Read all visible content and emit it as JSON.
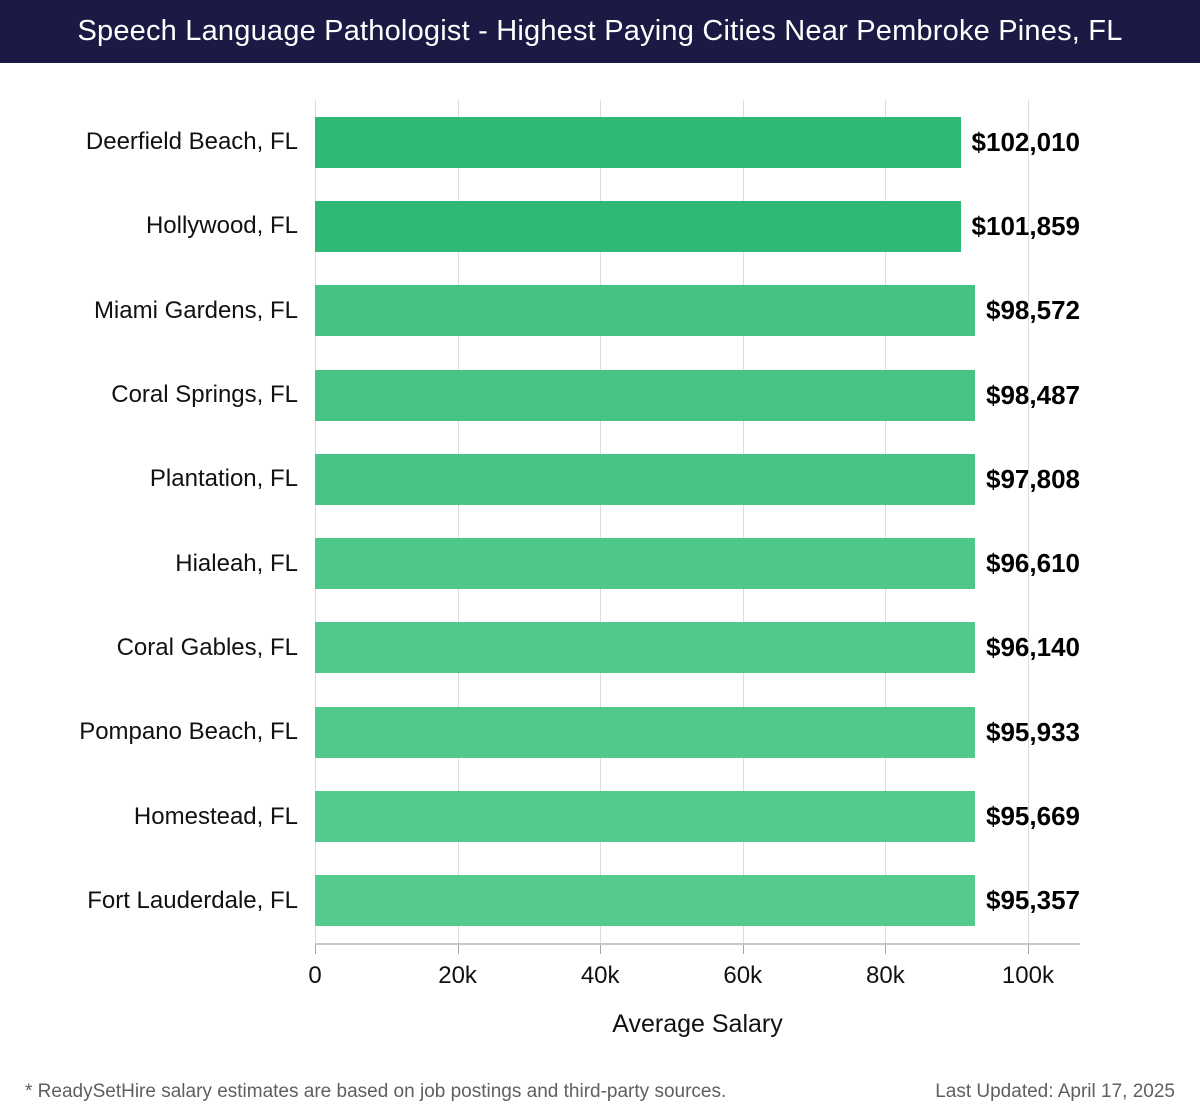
{
  "header": {
    "title": "Speech Language Pathologist - Highest Paying Cities Near Pembroke Pines, FL",
    "bg_color": "#1a1a44",
    "text_color": "#ffffff"
  },
  "chart_data": {
    "type": "bar",
    "orientation": "horizontal",
    "title": "Speech Language Pathologist - Highest Paying Cities Near Pembroke Pines, FL",
    "categories": [
      "Deerfield Beach, FL",
      "Hollywood, FL",
      "Miami Gardens, FL",
      "Coral Springs, FL",
      "Plantation, FL",
      "Hialeah, FL",
      "Coral Gables, FL",
      "Pompano Beach, FL",
      "Homestead, FL",
      "Fort Lauderdale, FL"
    ],
    "values": [
      102010,
      101859,
      98572,
      98487,
      97808,
      96610,
      96140,
      95933,
      95669,
      95357
    ],
    "value_labels": [
      "$102,010",
      "$101,859",
      "$98,572",
      "$98,487",
      "$97,808",
      "$96,610",
      "$96,140",
      "$95,933",
      "$95,669",
      "$95,357"
    ],
    "bar_colors": [
      "#2fb876",
      "#30b877",
      "#45c384",
      "#46c385",
      "#48c486",
      "#4ec78a",
      "#50c88b",
      "#51c88c",
      "#52c98d",
      "#54ca8e"
    ],
    "xlabel": "Average Salary",
    "ylabel": "",
    "x_ticks": [
      {
        "label": "0",
        "value": 0
      },
      {
        "label": "20k",
        "value": 20000
      },
      {
        "label": "40k",
        "value": 40000
      },
      {
        "label": "60k",
        "value": 60000
      },
      {
        "label": "80k",
        "value": 80000
      },
      {
        "label": "100k",
        "value": 100000
      }
    ],
    "xlim": [
      0,
      107300
    ],
    "grid": "vertical",
    "legend": "none"
  },
  "footer": {
    "disclaimer": "* ReadySetHire salary estimates are based on job postings and third-party sources.",
    "last_updated": "Last Updated: April 17, 2025"
  }
}
